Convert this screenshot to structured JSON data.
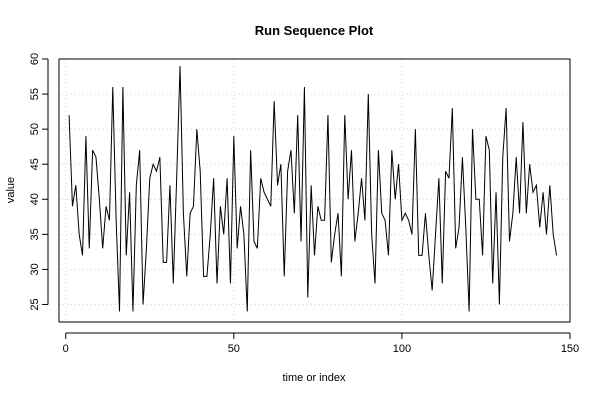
{
  "chart_data": {
    "type": "line",
    "title": "Run Sequence Plot",
    "xlabel": "time or index",
    "ylabel": "value",
    "xlim": [
      -2,
      150
    ],
    "ylim": [
      22.5,
      60
    ],
    "x_ticks": [
      0,
      50,
      100,
      150
    ],
    "y_ticks": [
      25,
      30,
      35,
      40,
      45,
      50,
      55,
      60
    ],
    "grid": true,
    "line_color": "#000000",
    "grid_color": "#d3d3d3",
    "series": [
      {
        "x": [
          1,
          2,
          3,
          4,
          5,
          6,
          7,
          8,
          9,
          10,
          11,
          12,
          13,
          14,
          15,
          16,
          17,
          18,
          19,
          20,
          21,
          22,
          23,
          24,
          25,
          26,
          27,
          28,
          29,
          30,
          31,
          32,
          33,
          34,
          35,
          36,
          37,
          38,
          39,
          40,
          41,
          42,
          43,
          44,
          45,
          46,
          47,
          48,
          49,
          50,
          51,
          52,
          53,
          54,
          55,
          56,
          57,
          58,
          59,
          60,
          61,
          62,
          63,
          64,
          65,
          66,
          67,
          68,
          69,
          70,
          71,
          72,
          73,
          74,
          75,
          76,
          77,
          78,
          79,
          80,
          81,
          82,
          83,
          84,
          85,
          86,
          87,
          88,
          89,
          90,
          91,
          92,
          93,
          94,
          95,
          96,
          97,
          98,
          99,
          100,
          101,
          102,
          103,
          104,
          105,
          106,
          107,
          108,
          109,
          110,
          111,
          112,
          113,
          114,
          115,
          116,
          117,
          118,
          119,
          120,
          121,
          122,
          123,
          124,
          125,
          126,
          127,
          128,
          129,
          130,
          131,
          132,
          133,
          134,
          135,
          136,
          137,
          138,
          139,
          140,
          141,
          142,
          143,
          144,
          145,
          146
        ],
        "values": [
          52,
          39,
          42,
          35,
          32,
          49,
          33,
          47,
          46,
          40,
          33,
          39,
          37,
          56,
          37,
          24,
          56,
          32,
          41,
          24,
          42,
          47,
          25,
          33,
          43,
          45,
          44,
          46,
          31,
          31,
          42,
          28,
          43,
          59,
          38,
          29,
          38,
          39,
          50,
          44,
          29,
          29,
          35,
          43,
          28,
          39,
          35,
          43,
          28,
          49,
          33,
          39,
          35,
          24,
          47,
          34,
          33,
          43,
          41,
          40,
          39,
          54,
          42,
          45,
          29,
          44,
          47,
          38,
          52,
          34,
          56,
          26,
          42,
          32,
          39,
          37,
          37,
          52,
          31,
          35,
          38,
          29,
          52,
          40,
          47,
          34,
          38,
          43,
          37,
          55,
          35,
          28,
          47,
          38,
          37,
          32,
          47,
          40,
          45,
          37,
          38,
          37,
          35,
          50,
          32,
          32,
          38,
          32,
          27,
          35,
          43,
          28,
          44,
          43,
          53,
          33,
          36,
          46,
          36,
          24,
          50,
          40,
          40,
          32,
          49,
          47,
          28,
          41,
          25,
          46,
          53,
          34,
          38,
          46,
          38,
          51,
          38,
          45,
          41,
          42,
          36,
          41,
          35,
          42,
          35,
          32
        ]
      }
    ]
  }
}
